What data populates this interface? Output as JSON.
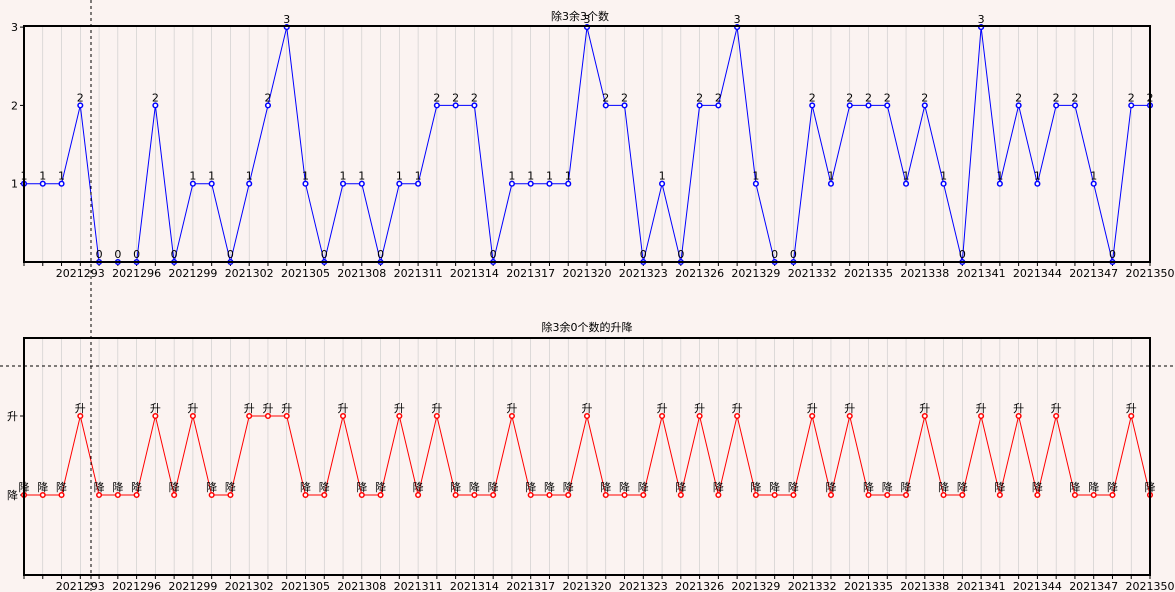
{
  "colors": {
    "background": "#fbf3f1",
    "grid": "#c8c8c8",
    "top_series": "#0000ff",
    "bottom_series": "#ff0000",
    "axis": "#000000"
  },
  "chart_data": [
    {
      "type": "line",
      "title": "除3余3个数",
      "x_start": 2021290,
      "x_end": 2021350,
      "x_tick_labels": [
        "2021293",
        "2021296",
        "2021299",
        "2021302",
        "2021305",
        "2021308",
        "2021311",
        "2021314",
        "2021317",
        "2021320",
        "2021323",
        "2021326",
        "2021329",
        "2021332",
        "2021335",
        "2021338",
        "2021341",
        "2021344",
        "2021347",
        "2021350"
      ],
      "y_tick_labels": [
        "1",
        "2",
        "3"
      ],
      "ylim": [
        0,
        3
      ],
      "grid": true,
      "series": [
        {
          "values": [
            1,
            1,
            1,
            2,
            0,
            0,
            0,
            2,
            0,
            1,
            1,
            0,
            1,
            2,
            3,
            1,
            0,
            1,
            1,
            0,
            1,
            1,
            2,
            2,
            2,
            0,
            1,
            1,
            1,
            1,
            3,
            2,
            2,
            0,
            1,
            0,
            2,
            2,
            3,
            1,
            0,
            0,
            2,
            1,
            2,
            2,
            2,
            1,
            2,
            1,
            0,
            3,
            1,
            2,
            1,
            2,
            2,
            1,
            0,
            2,
            2
          ],
          "point_labels": [
            "1",
            "1",
            "1",
            "2",
            "0",
            "0",
            "0",
            "2",
            "0",
            "1",
            "1",
            "0",
            "1",
            "2",
            "3",
            "1",
            "0",
            "1",
            "1",
            "0",
            "1",
            "1",
            "2",
            "2",
            "2",
            "0",
            "1",
            "1",
            "1",
            "1",
            "3",
            "2",
            "2",
            "0",
            "1",
            "0",
            "2",
            "2",
            "3",
            "1",
            "0",
            "0",
            "2",
            "1",
            "2",
            "2",
            "2",
            "1",
            "2",
            "1",
            "0",
            "3",
            "1",
            "2",
            "1",
            "2",
            "2",
            "1",
            "0",
            "2",
            "2"
          ]
        }
      ]
    },
    {
      "type": "line",
      "title": "除3余0个数的升降",
      "x_start": 2021290,
      "x_end": 2021350,
      "x_tick_labels": [
        "2021293",
        "2021296",
        "2021299",
        "2021302",
        "2021305",
        "2021308",
        "2021311",
        "2021314",
        "2021317",
        "2021320",
        "2021323",
        "2021326",
        "2021329",
        "2021332",
        "2021335",
        "2021338",
        "2021341",
        "2021344",
        "2021347",
        "2021350"
      ],
      "y_tick_labels": [
        "升",
        "降"
      ],
      "grid": true,
      "series": [
        {
          "point_labels": [
            "降",
            "降",
            "降",
            "升",
            "降",
            "降",
            "降",
            "升",
            "降",
            "升",
            "降",
            "降",
            "升",
            "升",
            "升",
            "降",
            "降",
            "升",
            "降",
            "降",
            "升",
            "降",
            "升",
            "降",
            "降",
            "降",
            "升",
            "降",
            "降",
            "降",
            "升",
            "降",
            "降",
            "降",
            "升",
            "降",
            "升",
            "降",
            "升",
            "降",
            "降",
            "降",
            "升",
            "降",
            "升",
            "降",
            "降",
            "降",
            "升",
            "降",
            "降",
            "升",
            "降",
            "升",
            "降",
            "升",
            "降",
            "降",
            "降",
            "升",
            "降"
          ]
        }
      ]
    }
  ]
}
